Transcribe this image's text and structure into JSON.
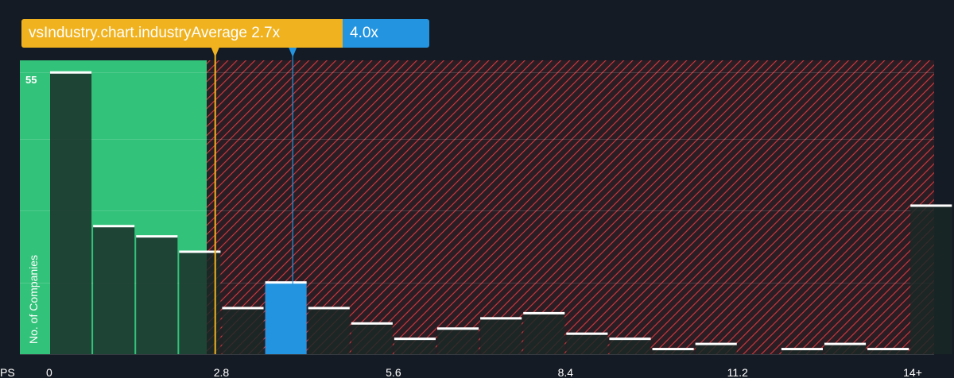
{
  "industry_label": "vsIndustry.chart.industryAverage 2.7x",
  "company_label": "4.0x",
  "colors": {
    "background": "#151b24",
    "fair_zone": "#33c27a",
    "overvalued_zone": "#e03b42",
    "industry_marker": "#f0b21e",
    "company_marker": "#2394e0"
  },
  "chart_data": {
    "type": "bar",
    "xlabel": "PS",
    "ylabel": "No. of Companies",
    "x_ticks": [
      "0",
      "2.8",
      "5.6",
      "8.4",
      "11.2",
      "14+"
    ],
    "y_label_value": "55",
    "industry_average": 2.7,
    "company_value": 4.0,
    "bin_width": 0.7,
    "bins": [
      {
        "x": 0.0,
        "count": 55,
        "highlight": false
      },
      {
        "x": 0.7,
        "count": 25,
        "highlight": false
      },
      {
        "x": 1.4,
        "count": 23,
        "highlight": false
      },
      {
        "x": 2.1,
        "count": 20,
        "highlight": false
      },
      {
        "x": 2.8,
        "count": 9,
        "highlight": false
      },
      {
        "x": 3.5,
        "count": 14,
        "highlight": true
      },
      {
        "x": 4.2,
        "count": 9,
        "highlight": false
      },
      {
        "x": 4.9,
        "count": 6,
        "highlight": false
      },
      {
        "x": 5.6,
        "count": 3,
        "highlight": false
      },
      {
        "x": 6.3,
        "count": 5,
        "highlight": false
      },
      {
        "x": 7.0,
        "count": 7,
        "highlight": false
      },
      {
        "x": 7.7,
        "count": 8,
        "highlight": false
      },
      {
        "x": 8.4,
        "count": 4,
        "highlight": false
      },
      {
        "x": 9.1,
        "count": 3,
        "highlight": false
      },
      {
        "x": 9.8,
        "count": 1,
        "highlight": false
      },
      {
        "x": 10.5,
        "count": 2,
        "highlight": false
      },
      {
        "x": 11.9,
        "count": 1,
        "highlight": false
      },
      {
        "x": 12.6,
        "count": 2,
        "highlight": false
      },
      {
        "x": 13.3,
        "count": 1,
        "highlight": false
      },
      {
        "x": 14.0,
        "count": 29,
        "highlight": false
      }
    ],
    "grid": true
  }
}
